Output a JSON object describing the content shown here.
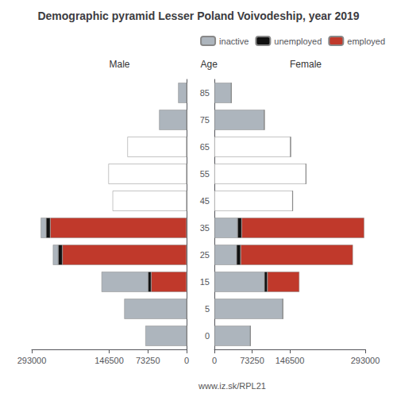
{
  "chart_data": [
    {
      "type": "bar",
      "orientation": "horizontal",
      "stacked": true,
      "title": "Demographic pyramid Lesser Poland Voivodeship, year 2019",
      "subtitle": "Male",
      "categories": [
        "0",
        "5",
        "15",
        "25",
        "35",
        "45",
        "55",
        "65",
        "75",
        "85"
      ],
      "series": [
        {
          "name": "employed",
          "color": "#c0392b",
          "values": [
            0,
            0,
            67000,
            235000,
            258000,
            0,
            0,
            0,
            0,
            0
          ]
        },
        {
          "name": "unemployed",
          "color": "#111111",
          "values": [
            0,
            0,
            6000,
            8000,
            8000,
            0,
            0,
            0,
            0,
            0
          ]
        },
        {
          "name": "inactive",
          "color": "#adb5bd",
          "colors": [
            "#adb5bd",
            "#adb5bd",
            "#adb5bd",
            "#adb5bd",
            "#adb5bd",
            "#ffffff",
            "#ffffff",
            "#ffffff",
            "#adb5bd",
            "#adb5bd"
          ],
          "values": [
            78000,
            118000,
            88000,
            10000,
            10000,
            140000,
            148000,
            112000,
            52000,
            16000
          ]
        }
      ],
      "xlim": [
        293000,
        0
      ],
      "xticks": [
        293000,
        146500,
        73250,
        0
      ],
      "grid": false,
      "tick_labels": "x"
    },
    {
      "type": "bar",
      "orientation": "horizontal",
      "stacked": true,
      "subtitle": "Female",
      "ylabel": "Age",
      "annotations": [
        "www.iz.sk/RPL21"
      ],
      "categories": [
        "0",
        "5",
        "15",
        "25",
        "35",
        "45",
        "55",
        "65",
        "75",
        "85"
      ],
      "series": [
        {
          "name": "inactive",
          "color": "#adb5bd",
          "colors": [
            "#adb5bd",
            "#adb5bd",
            "#adb5bd",
            "#adb5bd",
            "#adb5bd",
            "#ffffff",
            "#ffffff",
            "#ffffff",
            "#adb5bd",
            "#adb5bd"
          ],
          "values": [
            70000,
            133000,
            97000,
            43000,
            45000,
            152000,
            178000,
            148000,
            97000,
            33000
          ]
        },
        {
          "name": "unemployed",
          "color": "#111111",
          "values": [
            0,
            0,
            6000,
            8000,
            8000,
            0,
            0,
            0,
            0,
            0
          ]
        },
        {
          "name": "employed",
          "color": "#c0392b",
          "values": [
            0,
            0,
            62000,
            218000,
            238000,
            0,
            0,
            0,
            0,
            0
          ]
        }
      ],
      "xlim": [
        0,
        293000
      ],
      "xticks": [
        0,
        73250,
        146500,
        293000
      ],
      "grid": false,
      "legend": "upper right"
    }
  ]
}
